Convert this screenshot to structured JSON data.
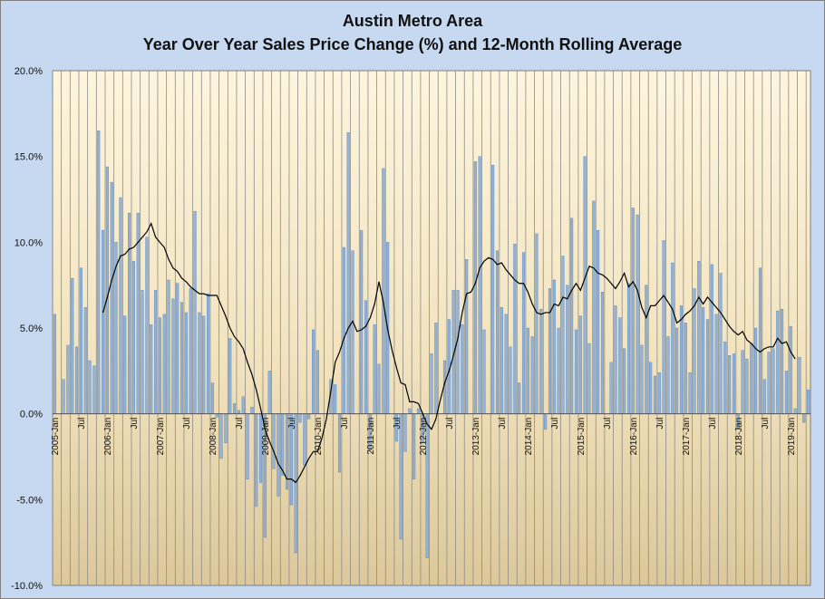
{
  "chart_data": {
    "type": "bar",
    "title": "Austin Metro Area",
    "subtitle": "Year Over Year Sales Price Change (%) and  12-Month Rolling Average",
    "xlabel": "",
    "ylabel": "",
    "ylim": [
      -10,
      20
    ],
    "y_ticks": [
      "20.0%",
      "15.0%",
      "10.0%",
      "5.0%",
      "0.0%",
      "-5.0%",
      "-10.0%"
    ],
    "grid": "vertical gridlines only",
    "background": "gradient from light cream (top) to tan (bottom)",
    "x_ticks": [
      {
        "index": 0,
        "label": "2005-Jan"
      },
      {
        "index": 6,
        "label": "Jul"
      },
      {
        "index": 12,
        "label": "2006-Jan"
      },
      {
        "index": 18,
        "label": "Jul"
      },
      {
        "index": 24,
        "label": "2007-Jan"
      },
      {
        "index": 30,
        "label": "Jul"
      },
      {
        "index": 36,
        "label": "2008-Jan"
      },
      {
        "index": 42,
        "label": "Jul"
      },
      {
        "index": 48,
        "label": "2009-Jan"
      },
      {
        "index": 54,
        "label": "Jul"
      },
      {
        "index": 60,
        "label": "2010-Jan"
      },
      {
        "index": 66,
        "label": "Jul"
      },
      {
        "index": 72,
        "label": "2011-Jan"
      },
      {
        "index": 78,
        "label": "Jul"
      },
      {
        "index": 84,
        "label": "2012-Jan"
      },
      {
        "index": 90,
        "label": "Jul"
      },
      {
        "index": 96,
        "label": "2013-Jan"
      },
      {
        "index": 102,
        "label": "Jul"
      },
      {
        "index": 108,
        "label": "2014-Jan"
      },
      {
        "index": 114,
        "label": "Jul"
      },
      {
        "index": 120,
        "label": "2015-Jan"
      },
      {
        "index": 126,
        "label": "Jul"
      },
      {
        "index": 132,
        "label": "2016-Jan"
      },
      {
        "index": 138,
        "label": "Jul"
      },
      {
        "index": 144,
        "label": "2017-Jan"
      },
      {
        "index": 150,
        "label": "Jul"
      },
      {
        "index": 156,
        "label": "2018-Jan"
      },
      {
        "index": 162,
        "label": "Jul"
      },
      {
        "index": 168,
        "label": "2019-Jan"
      }
    ],
    "series": [
      {
        "type": "bar",
        "color": "#95b3d7",
        "values": [
          5.8,
          0.0,
          2.0,
          4.0,
          7.9,
          3.9,
          8.5,
          6.2,
          3.1,
          2.8,
          16.5,
          10.7,
          14.4,
          13.5,
          10.0,
          12.6,
          5.7,
          11.7,
          8.9,
          11.7,
          7.2,
          10.3,
          5.2,
          7.2,
          5.6,
          5.8,
          7.8,
          6.7,
          7.6,
          6.5,
          5.9,
          7.3,
          11.8,
          5.9,
          5.7,
          7.0,
          1.8,
          -0.2,
          -2.6,
          -1.7,
          4.4,
          0.6,
          0.2,
          1.0,
          -3.8,
          0.4,
          -5.4,
          -4.0,
          -7.2,
          2.5,
          -3.2,
          -4.8,
          -3.6,
          -4.4,
          -5.3,
          -8.1,
          -0.5,
          -3.0,
          -0.3,
          4.9,
          3.7,
          0.0,
          0.0,
          2.0,
          1.7,
          -3.4,
          9.7,
          16.4,
          9.5,
          0.0,
          10.7,
          6.6,
          -2.1,
          5.2,
          2.9,
          14.3,
          10.0,
          0.0,
          -1.6,
          -7.3,
          -2.2,
          0.3,
          -3.8,
          0.3,
          -1.7,
          -8.4,
          3.5,
          5.3,
          0.0,
          3.1,
          5.5,
          7.2,
          7.2,
          5.2,
          9.0,
          0.0,
          14.7,
          15.0,
          4.9,
          0.0,
          14.5,
          9.5,
          6.2,
          5.8,
          3.9,
          9.9,
          1.8,
          9.4,
          5.0,
          4.5,
          10.5,
          6.1,
          -0.9,
          7.3,
          7.8,
          5.0,
          9.2,
          7.5,
          11.4,
          4.9,
          5.7,
          15.0,
          4.1,
          12.4,
          10.7,
          7.1,
          0.0,
          3.0,
          6.3,
          5.6,
          3.8,
          7.6,
          12.0,
          11.6,
          4.0,
          7.5,
          3.0,
          2.2,
          2.4,
          10.1,
          4.5,
          8.8,
          5.0,
          6.3,
          5.3,
          2.4,
          7.3,
          8.9,
          6.2,
          5.5,
          8.7,
          5.8,
          8.2,
          4.2,
          3.4,
          3.5,
          -0.9,
          3.7,
          3.2,
          4.1,
          5.0,
          8.5,
          2.0,
          3.6,
          3.8,
          6.0,
          6.1,
          2.5,
          5.1,
          0.3,
          3.3,
          -0.5,
          1.4
        ]
      },
      {
        "type": "line",
        "color": "#000000",
        "start_index": 11,
        "values": [
          5.9,
          6.8,
          7.8,
          8.6,
          9.2,
          9.3,
          9.6,
          9.7,
          10.0,
          10.3,
          10.6,
          11.1,
          10.3,
          10.0,
          9.7,
          9.0,
          8.5,
          8.3,
          7.9,
          7.7,
          7.4,
          7.2,
          7.0,
          7.0,
          6.9,
          6.9,
          6.9,
          6.3,
          5.7,
          5.0,
          4.5,
          4.2,
          3.8,
          3.0,
          2.3,
          1.4,
          0.3,
          -0.9,
          -1.6,
          -2.2,
          -2.9,
          -3.3,
          -3.8,
          -3.8,
          -4.0,
          -3.6,
          -3.1,
          -2.6,
          -2.2,
          -2.2,
          -1.4,
          -0.3,
          1.3,
          3.0,
          3.6,
          4.4,
          5.0,
          5.4,
          4.8,
          4.9,
          5.1,
          5.6,
          6.4,
          7.7,
          6.5,
          4.9,
          3.7,
          2.7,
          1.8,
          1.7,
          0.7,
          0.7,
          0.6,
          0.0,
          -0.6,
          -0.9,
          -0.3,
          0.8,
          1.8,
          2.5,
          3.4,
          4.4,
          5.9,
          7.0,
          7.1,
          7.6,
          8.5,
          8.9,
          9.1,
          9.0,
          8.7,
          8.8,
          8.4,
          8.1,
          7.8,
          7.6,
          7.6,
          7.1,
          6.4,
          5.9,
          5.8,
          5.9,
          5.9,
          6.4,
          6.3,
          6.8,
          6.7,
          7.2,
          7.6,
          7.2,
          7.9,
          8.6,
          8.5,
          8.2,
          8.1,
          7.9,
          7.6,
          7.3,
          7.7,
          8.2,
          7.4,
          7.7,
          7.2,
          6.2,
          5.6,
          6.3,
          6.3,
          6.6,
          6.9,
          6.5,
          6.1,
          5.3,
          5.5,
          5.8,
          6.0,
          6.3,
          6.8,
          6.4,
          6.8,
          6.5,
          6.2,
          5.9,
          5.5,
          5.1,
          4.8,
          4.6,
          4.8,
          4.3,
          4.1,
          3.8,
          3.6,
          3.8,
          3.9,
          3.9,
          4.4,
          4.1,
          4.2,
          3.6,
          3.2
        ]
      }
    ]
  }
}
